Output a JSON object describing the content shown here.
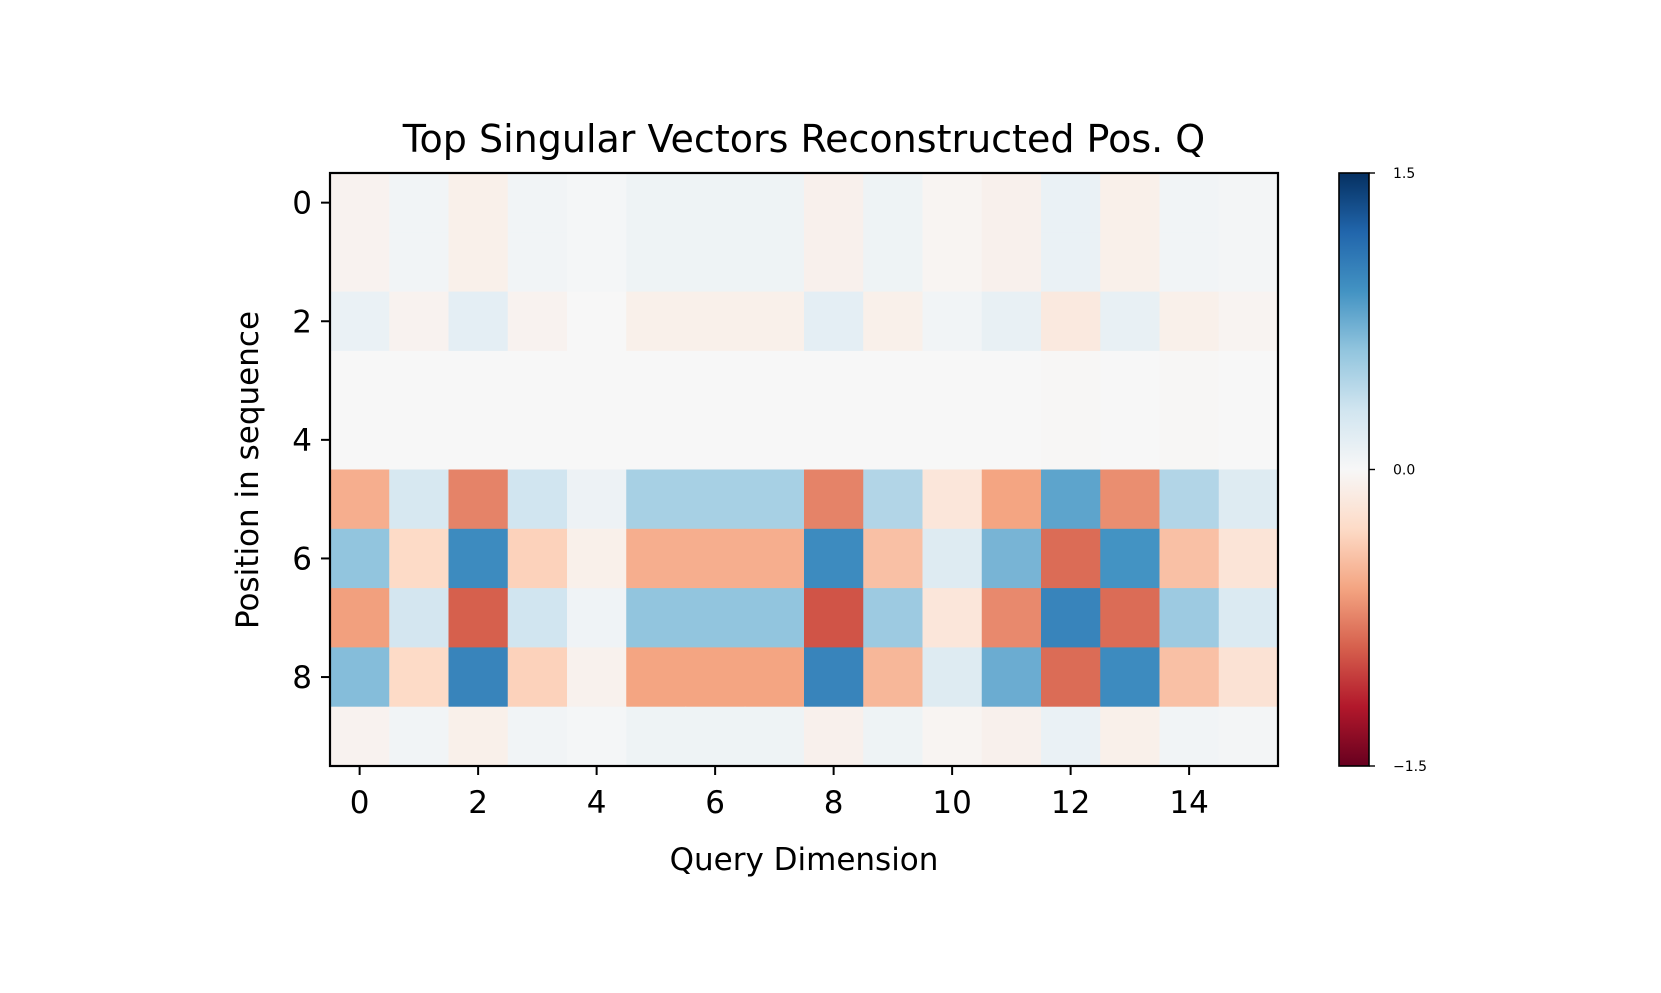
{
  "chart_data": {
    "type": "heatmap",
    "title": "Top Singular Vectors Reconstructed Pos. Q",
    "xlabel": "Query Dimension",
    "ylabel": "Position in sequence",
    "x_ticks": [
      "0",
      "2",
      "4",
      "6",
      "8",
      "10",
      "12",
      "14"
    ],
    "y_ticks": [
      "0",
      "2",
      "4",
      "6",
      "8"
    ],
    "x_categories": [
      0,
      1,
      2,
      3,
      4,
      5,
      6,
      7,
      8,
      9,
      10,
      11,
      12,
      13,
      14,
      15
    ],
    "y_categories": [
      0,
      1,
      2,
      3,
      4,
      5,
      6,
      7,
      8,
      9
    ],
    "colormap": "RdBu",
    "colorbar": {
      "vmin": -1.5,
      "vmax": 1.5,
      "ticks": [
        "1.5",
        "0.0",
        "−1.5"
      ],
      "colors": [
        "#67001f",
        "#b2182b",
        "#d6604d",
        "#f4a582",
        "#fddbc7",
        "#f7f7f7",
        "#d1e5f0",
        "#92c5de",
        "#4393c3",
        "#2166ac",
        "#053061"
      ]
    },
    "values": [
      [
        -0.05,
        0.05,
        -0.08,
        0.05,
        0.02,
        0.07,
        0.07,
        0.07,
        -0.07,
        0.07,
        -0.03,
        -0.07,
        0.1,
        -0.08,
        0.05,
        0.03
      ],
      [
        -0.05,
        0.05,
        -0.08,
        0.05,
        0.02,
        0.07,
        0.07,
        0.07,
        -0.07,
        0.07,
        -0.03,
        -0.07,
        0.1,
        -0.08,
        0.05,
        0.03
      ],
      [
        0.1,
        -0.05,
        0.15,
        -0.05,
        0.0,
        -0.08,
        -0.08,
        -0.08,
        0.15,
        -0.08,
        0.05,
        0.12,
        -0.15,
        0.12,
        -0.08,
        -0.04
      ],
      [
        0.0,
        0.0,
        0.0,
        0.0,
        0.0,
        0.0,
        0.0,
        0.0,
        0.0,
        0.0,
        0.0,
        0.0,
        -0.01,
        0.0,
        -0.01,
        0.0
      ],
      [
        0.0,
        0.0,
        0.0,
        0.0,
        0.0,
        0.0,
        0.0,
        0.0,
        0.0,
        0.0,
        0.0,
        0.0,
        -0.01,
        0.0,
        -0.01,
        0.0
      ],
      [
        -0.55,
        0.25,
        -0.75,
        0.3,
        0.08,
        0.5,
        0.5,
        0.5,
        -0.75,
        0.45,
        -0.18,
        -0.6,
        0.8,
        -0.7,
        0.45,
        0.2
      ],
      [
        0.6,
        -0.3,
        0.95,
        -0.35,
        -0.08,
        -0.55,
        -0.55,
        -0.55,
        0.95,
        -0.45,
        0.2,
        0.7,
        -0.85,
        0.9,
        -0.45,
        -0.2
      ],
      [
        -0.62,
        0.28,
        -0.9,
        0.3,
        0.06,
        0.6,
        0.6,
        0.6,
        -0.95,
        0.55,
        -0.18,
        -0.72,
        1.0,
        -0.85,
        0.55,
        0.22
      ],
      [
        0.65,
        -0.3,
        1.0,
        -0.35,
        -0.06,
        -0.6,
        -0.6,
        -0.6,
        1.0,
        -0.5,
        0.2,
        0.75,
        -0.85,
        0.95,
        -0.45,
        -0.22
      ],
      [
        -0.05,
        0.05,
        -0.08,
        0.05,
        0.02,
        0.07,
        0.07,
        0.07,
        -0.07,
        0.07,
        -0.03,
        -0.07,
        0.1,
        -0.08,
        0.05,
        0.03
      ]
    ]
  }
}
